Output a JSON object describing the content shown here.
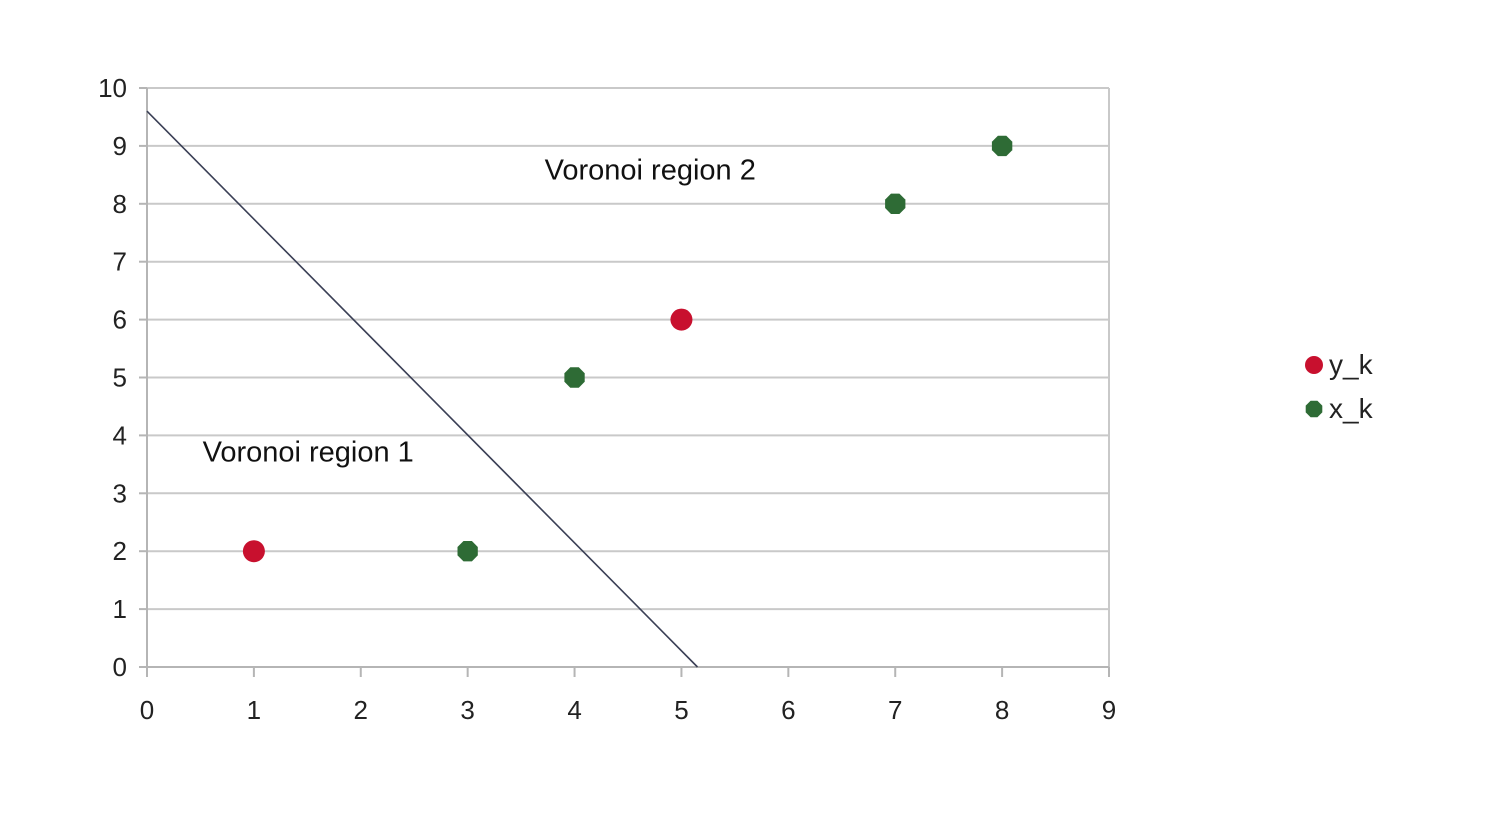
{
  "chart_data": {
    "type": "scatter",
    "title": "",
    "xlabel": "",
    "ylabel": "",
    "xlim": [
      0,
      9
    ],
    "ylim": [
      0,
      10
    ],
    "x_ticks": [
      0,
      1,
      2,
      3,
      4,
      5,
      6,
      7,
      8,
      9
    ],
    "y_ticks": [
      0,
      1,
      2,
      3,
      4,
      5,
      6,
      7,
      8,
      9,
      10
    ],
    "grid": "horizontal",
    "legend_position": "right",
    "series": [
      {
        "name": "y_k",
        "color": "#c8102e",
        "marker": "circle",
        "points": [
          {
            "x": 1,
            "y": 2
          },
          {
            "x": 5,
            "y": 6
          }
        ]
      },
      {
        "name": "x_k",
        "color": "#2e6b35",
        "marker": "octagon",
        "points": [
          {
            "x": 3,
            "y": 2
          },
          {
            "x": 4,
            "y": 5
          },
          {
            "x": 7,
            "y": 8
          },
          {
            "x": 8,
            "y": 9
          }
        ]
      }
    ],
    "boundary_line": {
      "color": "#3a3f55",
      "from": {
        "x": 0,
        "y": 9.6
      },
      "to": {
        "x": 5.15,
        "y": 0
      }
    },
    "annotations": [
      {
        "text": "Voronoi region 1",
        "x": 0.52,
        "y": 3.55
      },
      {
        "text": "Voronoi region 2",
        "x": 3.72,
        "y": 8.42
      }
    ]
  }
}
